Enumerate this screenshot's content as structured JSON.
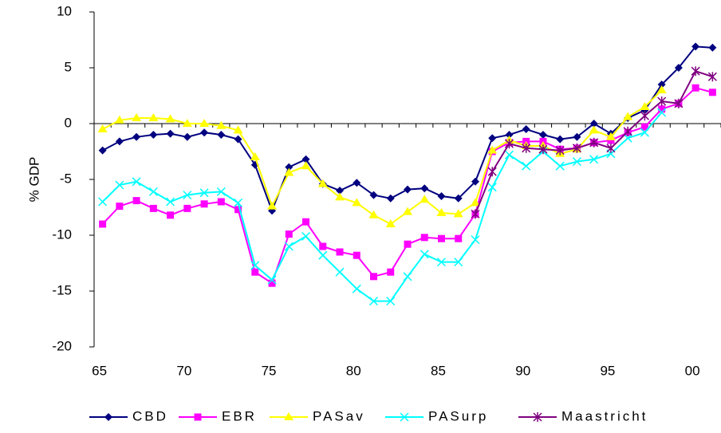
{
  "chart_data": {
    "type": "line",
    "ylabel": "% GDP",
    "categories": [
      "65",
      null,
      null,
      null,
      null,
      "70",
      null,
      null,
      null,
      null,
      "75",
      null,
      null,
      null,
      null,
      "80",
      null,
      null,
      null,
      null,
      "85",
      null,
      null,
      null,
      null,
      "90",
      null,
      null,
      null,
      null,
      "95",
      null,
      null,
      null,
      null,
      "00",
      null
    ],
    "ylim": [
      -20,
      10
    ],
    "yticks": [
      -20,
      -15,
      -10,
      -5,
      0,
      5,
      10
    ],
    "legend": "bottom",
    "series": [
      {
        "name": "CBD",
        "color": "#000080",
        "marker": "diamond",
        "values": [
          -2.4,
          -1.6,
          -1.2,
          -1.0,
          -0.9,
          -1.2,
          -0.8,
          -1.0,
          -1.4,
          -3.7,
          -7.8,
          -3.9,
          -3.2,
          -5.4,
          -6.0,
          -5.3,
          -6.4,
          -6.7,
          -5.9,
          -5.8,
          -6.5,
          -6.7,
          -5.2,
          -1.3,
          -1.0,
          -0.5,
          -1.0,
          -1.4,
          -1.2,
          0.0,
          -0.9,
          0.5,
          1.2,
          3.5,
          5.0,
          6.9,
          6.8
        ]
      },
      {
        "name": "EBR",
        "color": "#ff00ff",
        "marker": "square",
        "values": [
          -9.0,
          -7.4,
          -6.9,
          -7.6,
          -8.2,
          -7.6,
          -7.2,
          -7.0,
          -7.7,
          -13.3,
          -14.3,
          -9.9,
          -8.8,
          -11.0,
          -11.5,
          -11.8,
          -13.7,
          -13.3,
          -10.8,
          -10.2,
          -10.3,
          -10.3,
          -8.1,
          -2.5,
          -1.7,
          -1.6,
          -1.6,
          -2.3,
          -2.2,
          -1.7,
          -1.5,
          -0.8,
          -0.3,
          1.3,
          1.8,
          3.2,
          2.8
        ]
      },
      {
        "name": "PASav",
        "color": "#ffff00",
        "marker": "triangle",
        "values": [
          -0.5,
          0.3,
          0.5,
          0.5,
          0.4,
          0.0,
          0.0,
          -0.2,
          -0.6,
          -3.0,
          -7.4,
          -4.4,
          -3.8,
          -5.4,
          -6.6,
          -7.1,
          -8.2,
          -9.0,
          -7.9,
          -6.8,
          -8.0,
          -8.1,
          -7.1,
          -2.4,
          -1.5,
          -2.0,
          -2.0,
          -2.7,
          -2.3,
          -0.6,
          -1.2,
          0.6,
          1.5,
          3.0,
          null,
          null,
          null
        ]
      },
      {
        "name": "PASurp",
        "color": "#00ffff",
        "marker": "x",
        "values": [
          -7.0,
          -5.5,
          -5.2,
          -6.1,
          -7.0,
          -6.4,
          -6.2,
          -6.1,
          -7.1,
          -12.7,
          -14.0,
          -11.0,
          -10.1,
          -11.8,
          -13.3,
          -14.8,
          -15.9,
          -15.9,
          -13.7,
          -11.7,
          -12.4,
          -12.4,
          -10.4,
          -5.7,
          -2.8,
          -3.8,
          -2.5,
          -3.8,
          -3.4,
          -3.2,
          -2.7,
          -1.3,
          -0.8,
          1.0,
          null,
          null,
          null
        ]
      },
      {
        "name": "Maastricht",
        "color": "#800080",
        "marker": "star",
        "values": [
          null,
          null,
          null,
          null,
          null,
          null,
          null,
          null,
          null,
          null,
          null,
          null,
          null,
          null,
          null,
          null,
          null,
          null,
          null,
          null,
          null,
          null,
          -8.1,
          -4.3,
          -1.8,
          -2.2,
          -2.3,
          -2.4,
          -2.2,
          -1.7,
          -2.2,
          -0.7,
          0.7,
          2.0,
          1.8,
          4.7,
          4.2
        ]
      }
    ]
  }
}
